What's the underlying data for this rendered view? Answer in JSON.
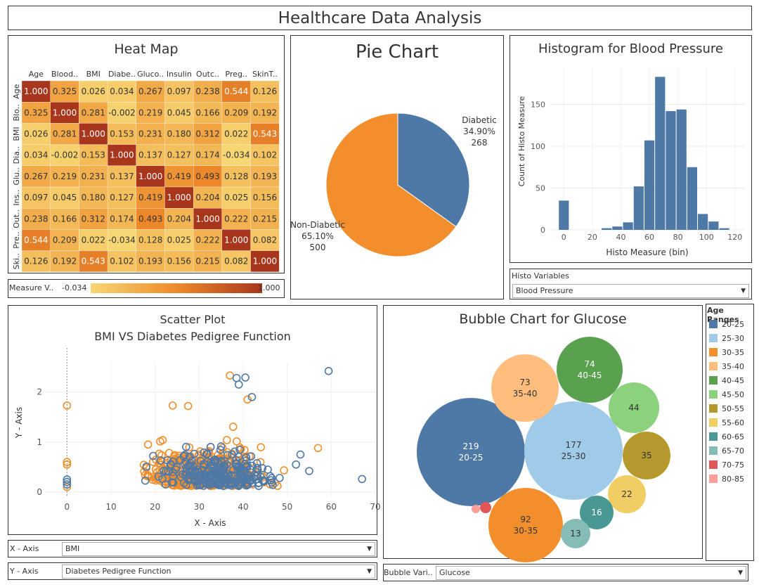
{
  "dashboard_title": "Healthcare Data Analysis",
  "heatmap": {
    "title": "Heat Map",
    "col_labels": [
      "Age",
      "Blood..",
      "BMI",
      "Diabe..",
      "Gluco..",
      "Insulin",
      "Outc..",
      "Preg..",
      "SkinT.."
    ],
    "row_labels": [
      "Age",
      "Blo..",
      "BMI",
      "Dia..",
      "Glu..",
      "Ins..",
      "Out..",
      "Pre..",
      "Ski.."
    ],
    "values": [
      [
        1.0,
        0.325,
        0.026,
        0.034,
        0.267,
        0.097,
        0.238,
        0.544,
        0.126
      ],
      [
        0.325,
        1.0,
        0.281,
        -0.002,
        0.219,
        0.045,
        0.166,
        0.209,
        0.192
      ],
      [
        0.026,
        0.281,
        1.0,
        0.153,
        0.231,
        0.18,
        0.312,
        0.022,
        0.543
      ],
      [
        0.034,
        -0.002,
        0.153,
        1.0,
        0.137,
        0.127,
        0.174,
        -0.034,
        0.102
      ],
      [
        0.267,
        0.219,
        0.231,
        0.137,
        1.0,
        0.419,
        0.493,
        0.128,
        0.193
      ],
      [
        0.097,
        0.045,
        0.18,
        0.127,
        0.419,
        1.0,
        0.204,
        0.025,
        0.156
      ],
      [
        0.238,
        0.166,
        0.312,
        0.174,
        0.493,
        0.204,
        1.0,
        0.222,
        0.215
      ],
      [
        0.544,
        0.209,
        0.022,
        -0.034,
        0.128,
        0.025,
        0.222,
        1.0,
        0.082
      ],
      [
        0.126,
        0.192,
        0.543,
        0.102,
        0.193,
        0.156,
        0.215,
        0.082,
        1.0
      ]
    ],
    "legend_label": "Measure V..",
    "legend_min": "-0.034",
    "legend_max": "1.000",
    "colors": {
      "low": "#f7d774",
      "mid": "#ee8a2a",
      "high": "#a8361c"
    }
  },
  "pie": {
    "title": "Pie Chart",
    "slices": [
      {
        "name": "Diabetic",
        "pct": "34.90%",
        "count": "268",
        "value": 268,
        "color": "#4e79a7"
      },
      {
        "name": "Non-Diabetic",
        "pct": "65.10%",
        "count": "500",
        "value": 500,
        "color": "#f28e2b"
      }
    ]
  },
  "histogram": {
    "title": "Histogram for Blood Pressure",
    "xlabel": "Histo Measure (bin)",
    "ylabel": "Count of Histo Measure",
    "x_ticks": [
      0,
      20,
      40,
      60,
      80,
      100,
      120
    ],
    "y_ticks": [
      0,
      50,
      100,
      150
    ],
    "bin_width": 7.5,
    "bins": [
      {
        "x": 0,
        "count": 35
      },
      {
        "x": 30,
        "count": 2
      },
      {
        "x": 37.5,
        "count": 4
      },
      {
        "x": 45,
        "count": 9
      },
      {
        "x": 52.5,
        "count": 52
      },
      {
        "x": 60,
        "count": 107
      },
      {
        "x": 67.5,
        "count": 183
      },
      {
        "x": 75,
        "count": 142
      },
      {
        "x": 82.5,
        "count": 144
      },
      {
        "x": 90,
        "count": 75
      },
      {
        "x": 97.5,
        "count": 19
      },
      {
        "x": 105,
        "count": 10
      },
      {
        "x": 112.5,
        "count": 2
      }
    ],
    "color": "#4e79a7",
    "ylim": [
      0,
      195
    ],
    "xlim": [
      -10,
      127
    ]
  },
  "histo_control": {
    "label": "Histo Variables",
    "value": "Blood Pressure"
  },
  "scatter": {
    "title_line1": "Scatter Plot",
    "title_line2": "BMI VS Diabetes Pedigree Function",
    "xlabel": "X - Axis",
    "ylabel": "Y - Axis",
    "x_ticks": [
      0,
      10,
      20,
      30,
      40,
      50,
      60,
      70
    ],
    "y_ticks": [
      0,
      1,
      2
    ],
    "xlim": [
      -5,
      70
    ],
    "ylim": [
      -0.1,
      2.6
    ],
    "colors": {
      "diabetic": "#4e79a7",
      "non_diabetic": "#f28e2b"
    },
    "highlight_points": [
      {
        "x": 0,
        "y": 1.73,
        "s": "n"
      },
      {
        "x": 0,
        "y": 0.6,
        "s": "n"
      },
      {
        "x": 0,
        "y": 0.55,
        "s": "n"
      },
      {
        "x": 0,
        "y": 0.25,
        "s": "d"
      },
      {
        "x": 0,
        "y": 0.2,
        "s": "d"
      },
      {
        "x": 0,
        "y": 0.15,
        "s": "d"
      },
      {
        "x": 0,
        "y": 0.1,
        "s": "n"
      },
      {
        "x": 37,
        "y": 2.33,
        "s": "n"
      },
      {
        "x": 38.5,
        "y": 2.28,
        "s": "d"
      },
      {
        "x": 40.5,
        "y": 2.29,
        "s": "d"
      },
      {
        "x": 39,
        "y": 2.15,
        "s": "d"
      },
      {
        "x": 42,
        "y": 1.9,
        "s": "d"
      },
      {
        "x": 59.4,
        "y": 2.42,
        "s": "d"
      },
      {
        "x": 41,
        "y": 1.85,
        "s": "n"
      },
      {
        "x": 24,
        "y": 1.73,
        "s": "n"
      },
      {
        "x": 27.5,
        "y": 1.72,
        "s": "n"
      },
      {
        "x": 67,
        "y": 0.26,
        "s": "d"
      },
      {
        "x": 57,
        "y": 0.88,
        "s": "n"
      },
      {
        "x": 53,
        "y": 0.75,
        "s": "d"
      },
      {
        "x": 55,
        "y": 0.42,
        "s": "d"
      },
      {
        "x": 52,
        "y": 0.55,
        "s": "d"
      }
    ],
    "scatter_note": "Point cloud (~750 points) clustered between x 18-50 and y 0.1-1.2."
  },
  "scatter_controls": {
    "x_label": "X - Axis",
    "x_value": "BMI",
    "y_label": "Y - Axis",
    "y_value": "Diabetes Pedigree Function"
  },
  "bubble": {
    "title": "Bubble Chart for Glucose",
    "bubbles": [
      {
        "value": "219",
        "label": "20-25",
        "color": "#4e79a7",
        "text": "#ffffff"
      },
      {
        "value": "177",
        "label": "25-30",
        "color": "#a0cbe8",
        "text": "#333333"
      },
      {
        "value": "92",
        "label": "30-35",
        "color": "#f28e2b",
        "text": "#333333"
      },
      {
        "value": "73",
        "label": "35-40",
        "color": "#ffbe7d",
        "text": "#333333"
      },
      {
        "value": "74",
        "label": "40-45",
        "color": "#59a14f",
        "text": "#ffffff"
      },
      {
        "value": "44",
        "label": "",
        "color": "#8cd17d",
        "text": "#333333"
      },
      {
        "value": "35",
        "label": "",
        "color": "#b6992d",
        "text": "#333333"
      },
      {
        "value": "22",
        "label": "",
        "color": "#f1ce63",
        "text": "#333333"
      },
      {
        "value": "16",
        "label": "",
        "color": "#499894",
        "text": "#ffffff"
      },
      {
        "value": "13",
        "label": "",
        "color": "#86bcb6",
        "text": "#333333"
      },
      {
        "value": "",
        "label": "",
        "color": "#e15759",
        "text": "#333333"
      },
      {
        "value": "",
        "label": "",
        "color": "#ff9d9a",
        "text": "#333333"
      }
    ]
  },
  "bubble_control": {
    "label": "Bubble Vari..",
    "value": "Glucose"
  },
  "age_legend": {
    "title": "Age Ranges",
    "items": [
      {
        "label": "20-25",
        "color": "#4e79a7"
      },
      {
        "label": "25-30",
        "color": "#a0cbe8"
      },
      {
        "label": "30-35",
        "color": "#f28e2b"
      },
      {
        "label": "35-40",
        "color": "#ffbe7d"
      },
      {
        "label": "40-45",
        "color": "#59a14f"
      },
      {
        "label": "45-50",
        "color": "#8cd17d"
      },
      {
        "label": "50-55",
        "color": "#b6992d"
      },
      {
        "label": "55-60",
        "color": "#f1ce63"
      },
      {
        "label": "60-65",
        "color": "#499894"
      },
      {
        "label": "65-70",
        "color": "#86bcb6"
      },
      {
        "label": "70-75",
        "color": "#e15759"
      },
      {
        "label": "80-85",
        "color": "#ff9d9a"
      }
    ]
  },
  "chart_data": [
    {
      "type": "heatmap",
      "title": "Heat Map",
      "x": [
        "Age",
        "Blood..",
        "BMI",
        "Diabe..",
        "Gluco..",
        "Insulin",
        "Outc..",
        "Preg..",
        "SkinT.."
      ],
      "y": [
        "Age",
        "Blo..",
        "BMI",
        "Dia..",
        "Glu..",
        "Ins..",
        "Out..",
        "Pre..",
        "Ski.."
      ],
      "note": "values in heatmap.values"
    },
    {
      "type": "pie",
      "title": "Pie Chart",
      "categories": [
        "Diabetic",
        "Non-Diabetic"
      ],
      "values": [
        268,
        500
      ]
    },
    {
      "type": "bar",
      "title": "Histogram for Blood Pressure",
      "xlabel": "Histo Measure (bin)",
      "ylabel": "Count of Histo Measure",
      "categories": [
        0,
        30,
        37.5,
        45,
        52.5,
        60,
        67.5,
        75,
        82.5,
        90,
        97.5,
        105,
        112.5
      ],
      "values": [
        35,
        2,
        4,
        9,
        52,
        107,
        183,
        142,
        144,
        75,
        19,
        10,
        2
      ]
    },
    {
      "type": "scatter",
      "title": "Scatter Plot BMI VS Diabetes Pedigree Function",
      "xlabel": "X - Axis",
      "ylabel": "Y - Axis",
      "xlim": [
        -5,
        70
      ],
      "ylim": [
        -0.1,
        2.6
      ]
    },
    {
      "type": "scatter",
      "title": "Bubble Chart for Glucose",
      "categories": [
        "20-25",
        "25-30",
        "30-35",
        "35-40",
        "40-45",
        "45-50",
        "50-55",
        "55-60",
        "60-65",
        "65-70"
      ],
      "values": [
        219,
        177,
        92,
        73,
        74,
        44,
        35,
        22,
        16,
        13
      ]
    }
  ]
}
